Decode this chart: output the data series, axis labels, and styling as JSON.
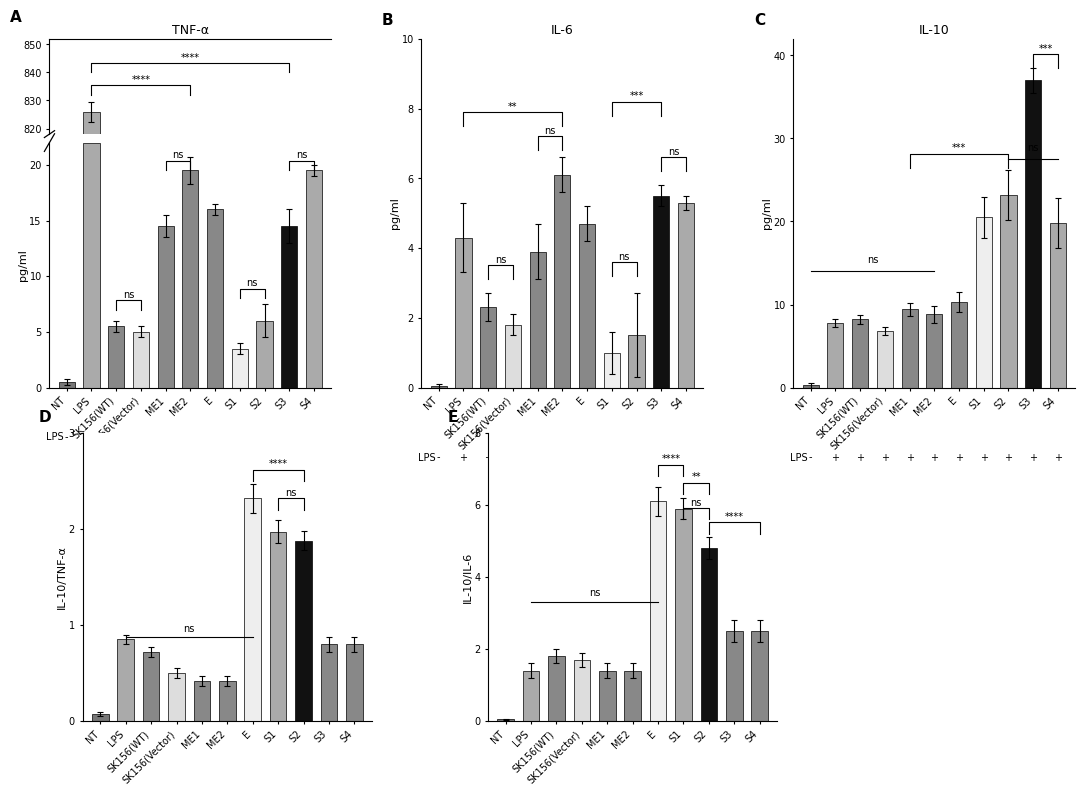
{
  "categories": [
    "NT",
    "LPS",
    "SK156(WT)",
    "SK156(Vector)",
    "ME1",
    "ME2",
    "E",
    "S1",
    "S2",
    "S3",
    "S4"
  ],
  "lps_labels": [
    "-",
    "+",
    "+",
    "+",
    "+",
    "+",
    "+",
    "+",
    "+",
    "+",
    "+"
  ],
  "A_values": [
    0.5,
    826,
    5.5,
    5.0,
    14.5,
    19.5,
    16.0,
    3.5,
    6.0,
    14.5,
    19.5
  ],
  "A_errors": [
    0.3,
    3.5,
    0.5,
    0.5,
    1.0,
    1.2,
    0.5,
    0.5,
    1.5,
    1.5,
    0.5
  ],
  "A_colors": [
    "#777777",
    "#aaaaaa",
    "#888888",
    "#dddddd",
    "#888888",
    "#888888",
    "#888888",
    "#eeeeee",
    "#aaaaaa",
    "#111111",
    "#aaaaaa"
  ],
  "B_values": [
    0.05,
    4.3,
    2.3,
    1.8,
    3.9,
    6.1,
    4.7,
    1.0,
    1.5,
    5.5,
    5.3
  ],
  "B_errors": [
    0.05,
    1.0,
    0.4,
    0.3,
    0.8,
    0.5,
    0.5,
    0.6,
    1.2,
    0.3,
    0.2
  ],
  "B_colors": [
    "#777777",
    "#aaaaaa",
    "#888888",
    "#dddddd",
    "#888888",
    "#888888",
    "#888888",
    "#eeeeee",
    "#aaaaaa",
    "#111111",
    "#aaaaaa"
  ],
  "C_values": [
    0.3,
    7.8,
    8.2,
    6.8,
    9.4,
    8.8,
    10.3,
    20.5,
    23.2,
    37.0,
    19.8
  ],
  "C_errors": [
    0.3,
    0.5,
    0.5,
    0.5,
    0.8,
    1.0,
    1.2,
    2.5,
    3.0,
    1.5,
    3.0
  ],
  "C_colors": [
    "#777777",
    "#aaaaaa",
    "#888888",
    "#dddddd",
    "#888888",
    "#888888",
    "#888888",
    "#eeeeee",
    "#aaaaaa",
    "#111111",
    "#aaaaaa"
  ],
  "D_values": [
    0.07,
    0.85,
    0.72,
    0.5,
    0.42,
    0.42,
    2.32,
    1.97,
    1.88,
    0.8,
    0.8
  ],
  "D_errors": [
    0.02,
    0.05,
    0.05,
    0.05,
    0.05,
    0.05,
    0.15,
    0.12,
    0.1,
    0.08,
    0.08
  ],
  "D_colors": [
    "#777777",
    "#aaaaaa",
    "#888888",
    "#dddddd",
    "#888888",
    "#888888",
    "#eeeeee",
    "#aaaaaa",
    "#111111",
    "#888888",
    "#888888"
  ],
  "E_values": [
    0.05,
    1.4,
    1.8,
    1.7,
    1.4,
    1.4,
    6.1,
    5.9,
    4.8,
    2.5,
    2.5
  ],
  "E_errors": [
    0.02,
    0.2,
    0.2,
    0.2,
    0.2,
    0.2,
    0.4,
    0.3,
    0.3,
    0.3,
    0.3
  ],
  "E_colors": [
    "#777777",
    "#aaaaaa",
    "#888888",
    "#dddddd",
    "#888888",
    "#888888",
    "#eeeeee",
    "#aaaaaa",
    "#111111",
    "#888888",
    "#888888"
  ],
  "title_A": "TNF-α",
  "title_B": "IL-6",
  "title_C": "IL-10",
  "ylabel_A": "pg/ml",
  "ylabel_B": "pg/ml",
  "ylabel_C": "pg/ml",
  "ylabel_D": "IL-10/TNF-α",
  "ylabel_E": "IL-10/IL-6",
  "background": "#ffffff",
  "bar_width": 0.65
}
